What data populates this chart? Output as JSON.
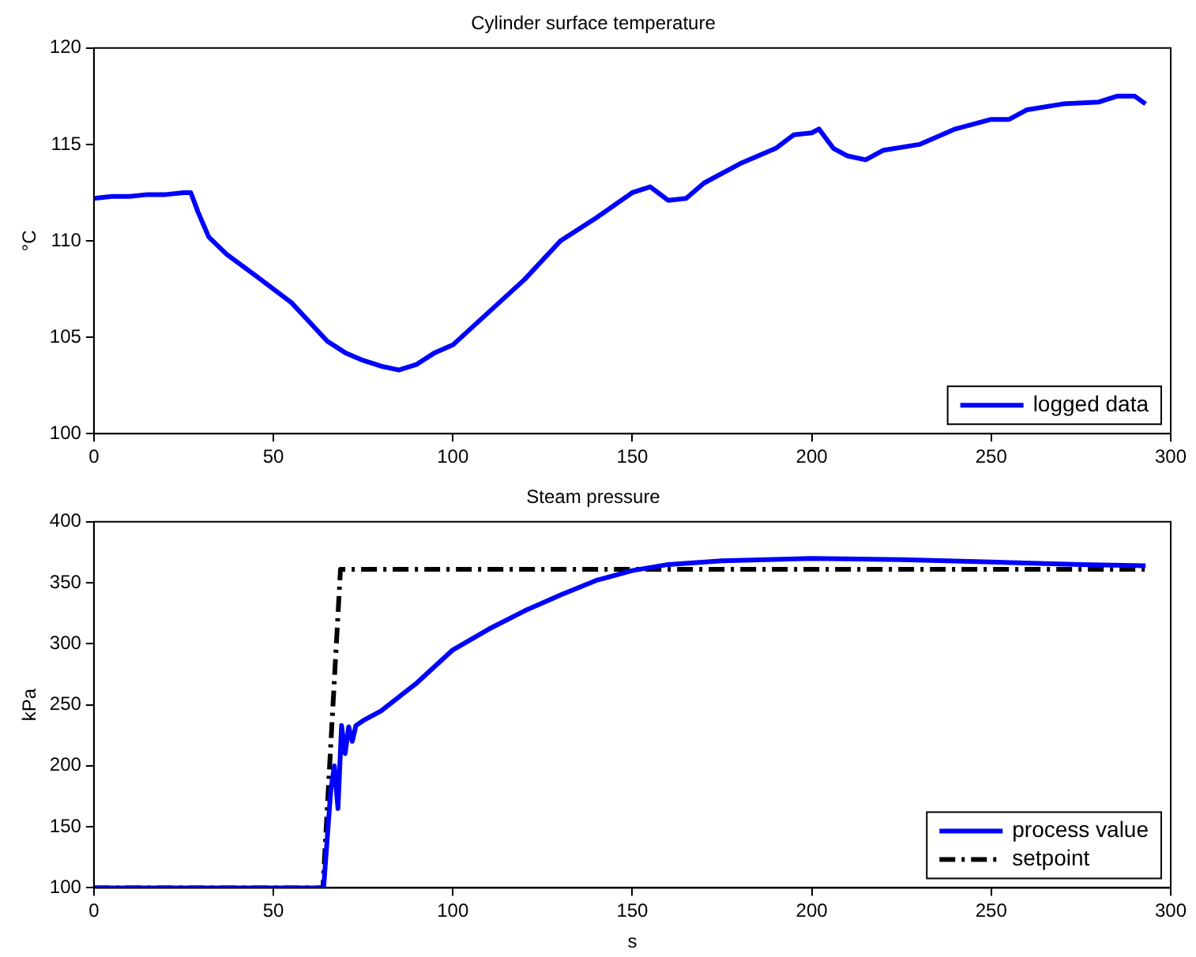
{
  "chart_data": [
    {
      "type": "line",
      "title": "Cylinder surface temperature",
      "ylabel": "°C",
      "xlim": [
        0,
        300
      ],
      "xticks": [
        0,
        50,
        100,
        150,
        200,
        250,
        300
      ],
      "ylim": [
        100,
        120
      ],
      "yticks": [
        100,
        105,
        110,
        115,
        120
      ],
      "legend": "bottom right",
      "grid": false,
      "marker": "none",
      "series": [
        {
          "name": "logged data",
          "color": "#0000ff",
          "line_style": "solid",
          "x": [
            0,
            5,
            10,
            15,
            20,
            25,
            27,
            29,
            32,
            37,
            45,
            55,
            60,
            65,
            70,
            75,
            80,
            85,
            90,
            95,
            100,
            110,
            120,
            130,
            140,
            150,
            155,
            160,
            165,
            170,
            180,
            190,
            195,
            200,
            202,
            206,
            210,
            215,
            220,
            230,
            240,
            250,
            255,
            260,
            270,
            280,
            285,
            290,
            293
          ],
          "values": [
            112.2,
            112.3,
            112.3,
            112.4,
            112.4,
            112.5,
            112.5,
            111.5,
            110.2,
            109.3,
            108.2,
            106.8,
            105.8,
            104.8,
            104.2,
            103.8,
            103.5,
            103.3,
            103.6,
            104.2,
            104.6,
            106.3,
            108,
            110,
            111.2,
            112.5,
            112.8,
            112.1,
            112.2,
            113,
            114,
            114.8,
            115.5,
            115.6,
            115.8,
            114.8,
            114.4,
            114.2,
            114.7,
            115,
            115.8,
            116.3,
            116.3,
            116.8,
            117.1,
            117.2,
            117.5,
            117.5,
            117.1
          ]
        }
      ]
    },
    {
      "type": "line",
      "title": "Steam pressure",
      "xlabel": "s",
      "ylabel": "kPa",
      "xlim": [
        0,
        300
      ],
      "xticks": [
        0,
        50,
        100,
        150,
        200,
        250,
        300
      ],
      "ylim": [
        100,
        400
      ],
      "yticks": [
        100,
        150,
        200,
        250,
        300,
        350,
        400
      ],
      "legend": "bottom right",
      "grid": false,
      "marker": "none",
      "series": [
        {
          "name": "process value",
          "color": "#0000ff",
          "line_style": "solid",
          "x": [
            0,
            20,
            40,
            60,
            62,
            63,
            64,
            65,
            66,
            67,
            68,
            69,
            70,
            71,
            72,
            73,
            75,
            80,
            90,
            100,
            110,
            120,
            130,
            140,
            150,
            160,
            175,
            200,
            225,
            250,
            275,
            293
          ],
          "values": [
            100,
            100,
            100,
            100,
            100,
            100,
            100,
            140,
            180,
            200,
            165,
            233,
            210,
            232,
            220,
            233,
            237,
            245,
            268,
            295,
            312,
            327,
            340,
            352,
            360,
            365,
            368,
            370,
            369,
            367,
            365,
            364
          ]
        },
        {
          "name": "setpoint",
          "color": "#000000",
          "line_style": "dashed",
          "x": [
            0,
            63.8,
            68.7,
            293
          ],
          "values": [
            100,
            100,
            361,
            361
          ]
        }
      ]
    }
  ]
}
